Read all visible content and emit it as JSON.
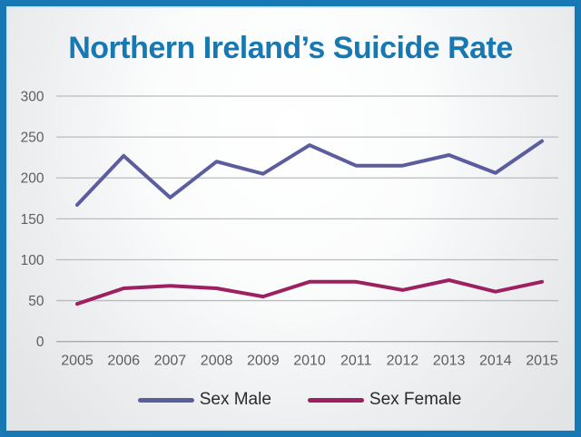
{
  "window": {
    "border_color": "#1878b3",
    "inner_edge_color": "#d6e7f2"
  },
  "title": {
    "text": "Northern Ireland’s Suicide Rate",
    "color": "#1779b3"
  },
  "chart_data": {
    "type": "line",
    "title": "Northern Ireland’s Suicide Rate",
    "categories": [
      "2005",
      "2006",
      "2007",
      "2008",
      "2009",
      "2010",
      "2011",
      "2012",
      "2013",
      "2014",
      "2015"
    ],
    "series": [
      {
        "name": "Sex Male",
        "color": "#5b5d9e",
        "values": [
          167,
          227,
          176,
          220,
          205,
          240,
          215,
          215,
          228,
          206,
          245
        ]
      },
      {
        "name": "Sex Female",
        "color": "#9d2161",
        "values": [
          46,
          65,
          68,
          65,
          55,
          73,
          73,
          63,
          75,
          61,
          73
        ]
      }
    ],
    "ylim": [
      0,
      300
    ],
    "yticks": [
      0,
      50,
      100,
      150,
      200,
      250,
      300
    ],
    "grid": true,
    "legend_position": "bottom",
    "xlabel": "",
    "ylabel": "",
    "styles": {
      "gridline_color": "#b9bbbe",
      "axis_line_color": "#a8aaad",
      "tick_label_color": "#5d5e60",
      "legend_text_color": "#2b2b2b"
    }
  }
}
